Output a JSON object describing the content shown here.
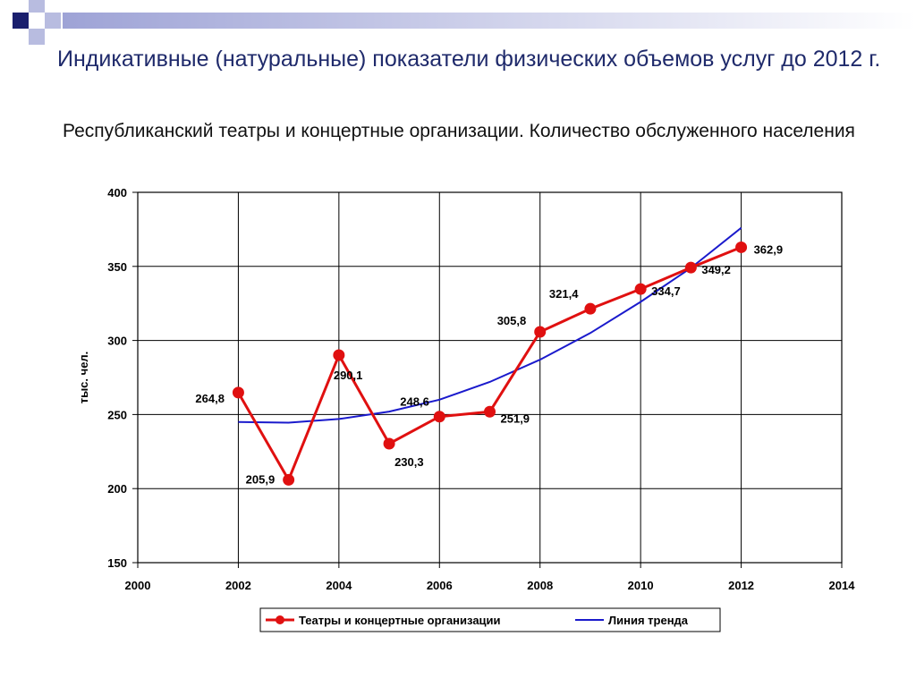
{
  "slide": {
    "title": "Индикативные (натуральные) показатели физических объемов услуг до 2012 г.",
    "subtitle": "Республиканский театры и концертные организации. Количество обслуженного населения"
  },
  "colors": {
    "series": "#e01010",
    "trend": "#1a1acc",
    "title": "#1f2a6b",
    "deco_dark": "#1a1f6e",
    "deco_light": "#b8bce0"
  },
  "chart_data": {
    "type": "line",
    "title": "",
    "xlabel": "",
    "ylabel": "тыс. чел.",
    "xlim": [
      2000,
      2014
    ],
    "ylim": [
      150,
      400
    ],
    "xticks": [
      2000,
      2002,
      2004,
      2006,
      2008,
      2010,
      2012,
      2014
    ],
    "yticks": [
      150,
      200,
      250,
      300,
      350,
      400
    ],
    "xtick_labels": [
      "2000",
      "2002",
      "2004",
      "2006",
      "2008",
      "2010",
      "2012",
      "2014"
    ],
    "ytick_labels": [
      "150",
      "200",
      "250",
      "300",
      "350",
      "400"
    ],
    "grid": true,
    "legend_position": "bottom",
    "series": [
      {
        "name": "Театры и концертные организации",
        "x": [
          2002,
          2003,
          2004,
          2005,
          2006,
          2007,
          2008,
          2009,
          2010,
          2011,
          2012
        ],
        "values": [
          264.8,
          205.9,
          290.1,
          230.3,
          248.6,
          251.9,
          305.8,
          321.4,
          334.7,
          349.2,
          362.9
        ],
        "labels": [
          "264,8",
          "205,9",
          "290,1",
          "230,3",
          "248,6",
          "251,9",
          "305,8",
          "321,4",
          "334,7",
          "349,2",
          "362,9"
        ]
      },
      {
        "name": "Линия тренда",
        "x": [
          2002,
          2003,
          2004,
          2005,
          2006,
          2007,
          2008,
          2009,
          2010,
          2011,
          2012
        ],
        "values": [
          245,
          244.5,
          247,
          252,
          260,
          272,
          287,
          305,
          326,
          349,
          376
        ]
      }
    ]
  }
}
